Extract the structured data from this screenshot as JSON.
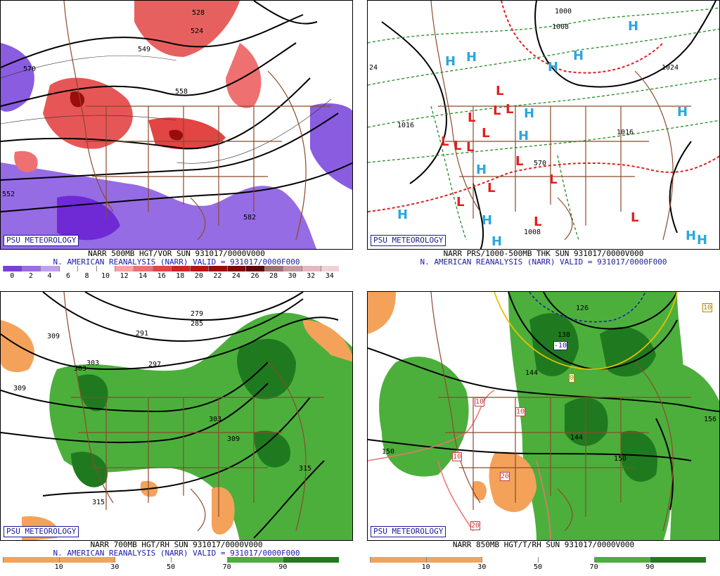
{
  "panels": [
    {
      "psu_label": "PSU METEOROLOGY",
      "caption_line1": "NARR 500MB HGT/VOR SUN 931017/0000V000",
      "caption_line2": "N. AMERICAN REANALYSIS (NARR) VALID = 931017/0000F000",
      "contour_labels": [
        "570",
        "549",
        "524",
        "528",
        "558",
        "552",
        "582"
      ],
      "colorbar_ticks": [
        "0",
        "2",
        "4",
        "6",
        "8",
        "10",
        "12",
        "14",
        "16",
        "18",
        "20",
        "22",
        "24",
        "26",
        "28",
        "30",
        "32",
        "34"
      ],
      "colorbar_colors": [
        "#7b3fd6",
        "#9d6ce0",
        "#c0a1ee",
        "#ffffff",
        "#ffffff",
        "#ffffff",
        "#f6a3a3",
        "#ee7070",
        "#e34444",
        "#cf2424",
        "#b81414",
        "#9c0c0c",
        "#7d0808",
        "#5e0606",
        "#a07070",
        "#c89aa0",
        "#e6b7c0",
        "#f2d0d8"
      ],
      "vort_negative_marker": "N"
    },
    {
      "psu_label": "PSU METEOROLOGY",
      "caption_line1": "NARR PRS/1000-500MB THK SUN 931017/0000V000",
      "caption_line2": "N. AMERICAN REANALYSIS (NARR) VALID = 931017/0000F000",
      "contour_labels": [
        "1000",
        "1008",
        "1016",
        "1024",
        "1016",
        "1008",
        "24",
        "570"
      ],
      "high_marker": "H",
      "low_marker": "L"
    },
    {
      "psu_label": "PSU METEOROLOGY",
      "caption_line1": "NARR 700MB HGT/RH SUN 931017/0000V000",
      "caption_line2": "N. AMERICAN REANALYSIS (NARR) VALID = 931017/0000F000",
      "contour_labels": [
        "279",
        "285",
        "291",
        "297",
        "303",
        "309",
        "303",
        "303",
        "309",
        "315",
        "315",
        "309"
      ],
      "colorbar_ticks": [
        "10",
        "30",
        "50",
        "70",
        "90"
      ],
      "colorbar_colors": [
        "#f4a25a",
        "#f4a25a",
        "#ffffff",
        "#ffffff",
        "#4caf3c",
        "#1f7a1f"
      ]
    },
    {
      "psu_label": "PSU METEOROLOGY",
      "caption_line1": "NARR 850MB HGT/T/RH SUN 931017/0000V000",
      "caption_line2": "",
      "contour_labels": [
        "126",
        "138",
        "144",
        "150",
        "156",
        "150",
        "144",
        "-10",
        "0",
        "10",
        "10",
        "10",
        "20",
        "20",
        "10"
      ],
      "colorbar_ticks": [
        "10",
        "30",
        "50",
        "70",
        "90"
      ],
      "colorbar_colors": [
        "#f4a25a",
        "#f4a25a",
        "#ffffff",
        "#ffffff",
        "#4caf3c",
        "#1f7a1f"
      ]
    }
  ],
  "colors": {
    "psu_blue": "#1a1a9a",
    "caption_blue": "#1a1aaa",
    "border_brown": "#8b4a2b",
    "high_cyan": "#2ba6e0",
    "low_red": "#e02020",
    "rh_green": "#4caf3c",
    "rh_darkgreen": "#1f7a1f",
    "rh_orange": "#f4a25a",
    "vort_red": "#e34444",
    "vort_purple": "#8a5ce0"
  }
}
